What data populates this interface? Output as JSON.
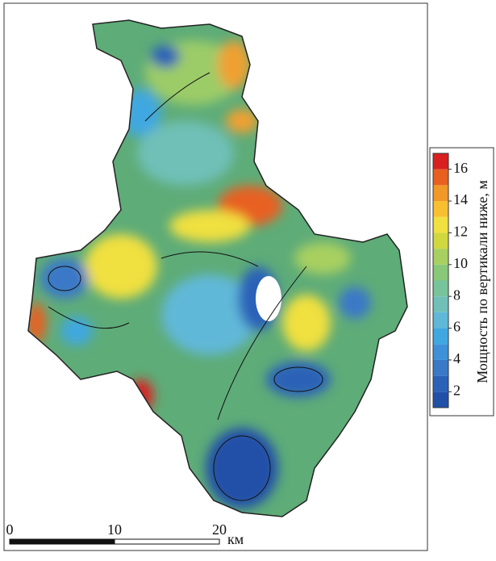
{
  "colorbar": {
    "label": "Мощность по вертикали ниже, м",
    "lim": [
      1,
      17
    ],
    "ticks": [
      2,
      4,
      6,
      8,
      10,
      12,
      14,
      16
    ],
    "colors": [
      "#2050a8",
      "#2a62b8",
      "#3a78c8",
      "#3e90d8",
      "#40a8e0",
      "#60b8d8",
      "#70c0b8",
      "#78c49a",
      "#88c878",
      "#a8d060",
      "#d0d840",
      "#f0e040",
      "#f8c030",
      "#f09828",
      "#e86020",
      "#d82020"
    ]
  },
  "scale_bar": {
    "ticks": [
      0,
      10,
      20
    ],
    "unit": "км"
  }
}
